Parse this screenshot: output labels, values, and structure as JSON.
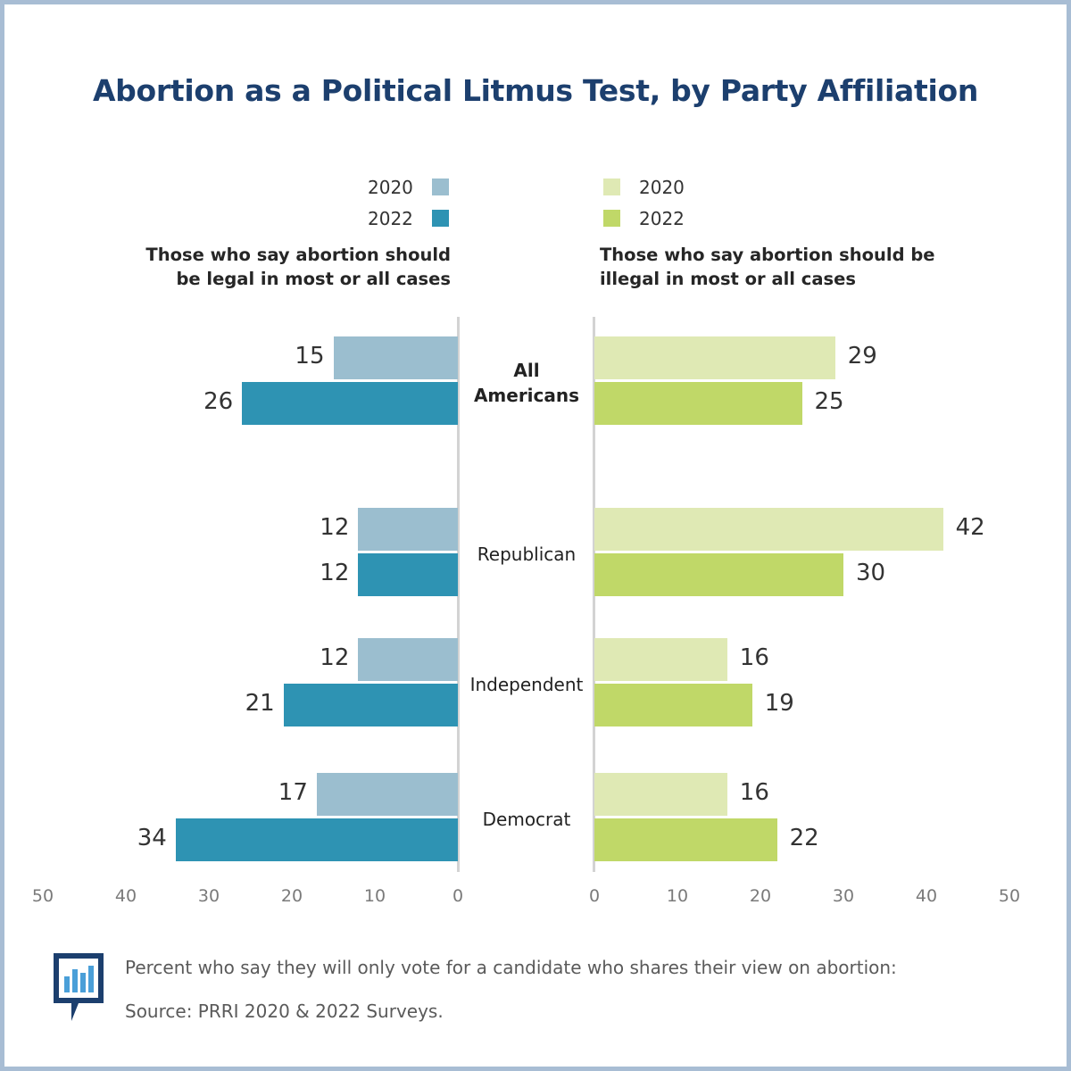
{
  "title": "Abortion as a Political Litmus Test, by Party Affiliation",
  "legend": {
    "left": [
      {
        "label": "2020",
        "color": "#9bbecf"
      },
      {
        "label": "2022",
        "color": "#2e93b3"
      }
    ],
    "right": [
      {
        "label": "2020",
        "color": "#dfe9b4"
      },
      {
        "label": "2022",
        "color": "#c0d868"
      }
    ]
  },
  "side_headers": {
    "left": "Those who say abortion should be legal in most or all cases",
    "right": "Those who say abortion should be illegal in most or all cases"
  },
  "footer": {
    "note": "Percent who say they will only vote for a candidate who shares their view on abortion:",
    "source": "Source: PRRI 2020 & 2022 Surveys."
  },
  "chart_data": {
    "type": "bar",
    "orientation": "horizontal-diverging",
    "title": "Abortion as a Political Litmus Test, by Party Affiliation",
    "categories": [
      "All Americans",
      "Republican",
      "Independent",
      "Democrat"
    ],
    "category_bold": [
      true,
      false,
      false,
      false
    ],
    "left_panel": {
      "header": "Those who say abortion should be legal in most or all cases",
      "series": [
        {
          "name": "2020",
          "color": "#9bbecf",
          "values": [
            15,
            12,
            12,
            17
          ]
        },
        {
          "name": "2022",
          "color": "#2e93b3",
          "values": [
            26,
            12,
            21,
            34
          ]
        }
      ]
    },
    "right_panel": {
      "header": "Those who say abortion should be illegal in most or all cases",
      "series": [
        {
          "name": "2020",
          "color": "#dfe9b4",
          "values": [
            29,
            42,
            16,
            16
          ]
        },
        {
          "name": "2022",
          "color": "#c0d868",
          "values": [
            25,
            30,
            19,
            22
          ]
        }
      ]
    },
    "xlim": [
      0,
      50
    ],
    "left_ticks": [
      "50",
      "40",
      "30",
      "20",
      "10",
      "0"
    ],
    "right_ticks": [
      "0",
      "10",
      "20",
      "30",
      "40",
      "50"
    ]
  }
}
